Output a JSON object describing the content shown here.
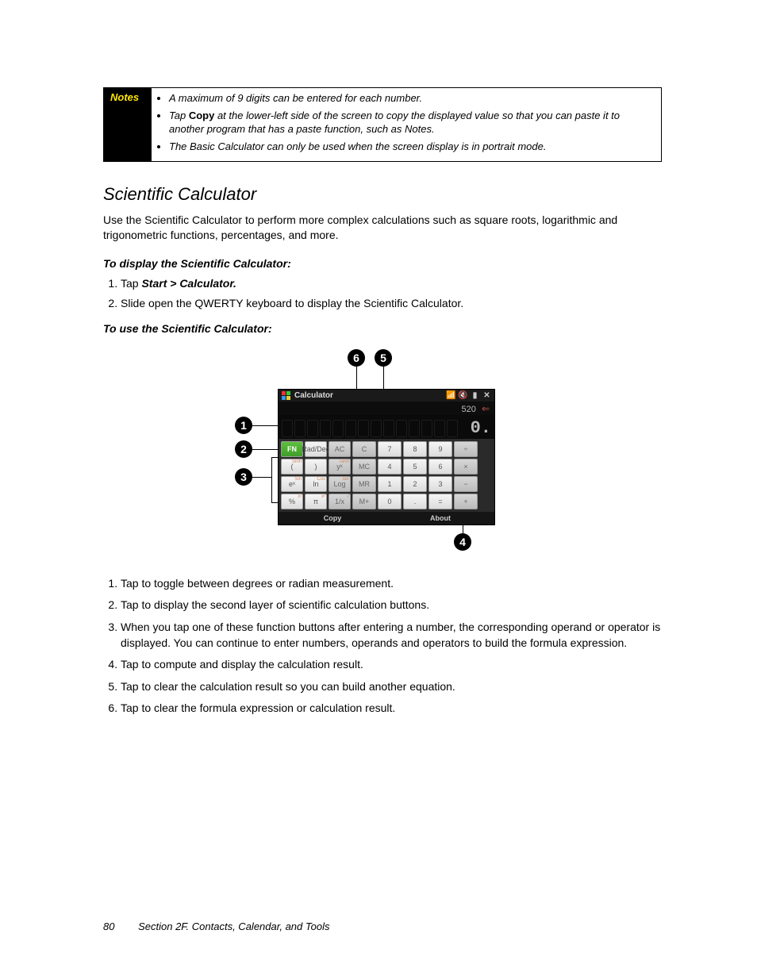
{
  "notes": {
    "label": "Notes",
    "items": [
      {
        "text": "A maximum of 9 digits can be entered for each number."
      },
      {
        "pre": "Tap ",
        "bold": "Copy",
        "post": " at the lower-left side of the screen to copy the displayed value so that you can paste it to another program that has a paste function, such as Notes."
      },
      {
        "text": "The Basic Calculator can only be used when the screen display is in portrait mode."
      }
    ]
  },
  "section_title": "Scientific Calculator",
  "intro": "Use the Scientific Calculator to perform more complex calculations such as square roots, logarithmic and trigonometric functions, percentages, and more.",
  "display_head": "To display the Scientific Calculator:",
  "display_steps": [
    {
      "pre": "Tap ",
      "bi": "Start > Calculator."
    },
    {
      "text": "Slide open the QWERTY keyboard to display the Scientific Calculator."
    }
  ],
  "use_head": "To use the Scientific Calculator:",
  "calc": {
    "title": "Calculator",
    "value": "520",
    "lcd_zero": "0.",
    "bottom_left": "Copy",
    "bottom_right": "About",
    "rows": [
      [
        "FN",
        "Rad/Deg",
        "AC",
        "C",
        "7",
        "8",
        "9",
        "÷"
      ],
      [
        "(",
        "  )",
        "yˣ",
        "MC",
        "4",
        "5",
        "6",
        "×"
      ],
      [
        "eˣ",
        "ln",
        "Log",
        "MR",
        "1",
        "2",
        "3",
        "−"
      ],
      [
        "%",
        "π",
        "1/x",
        "M+",
        "0",
        ".",
        "=",
        "+"
      ]
    ],
    "sup_map": {
      "(": "Sinh",
      ")": "Cosh",
      "yˣ": "Tanh",
      "eˣ": "Sin",
      "ln": "Cos",
      "Log": "Tan",
      "%": "x!",
      "π": "x²",
      "1/x": "√"
    },
    "row1_extra": [
      "Sin",
      "Cos"
    ]
  },
  "callouts": {
    "1": "1",
    "2": "2",
    "3": "3",
    "4": "4",
    "5": "5",
    "6": "6"
  },
  "desc": [
    "Tap to toggle between degrees or radian measurement.",
    "Tap to display the second layer of scientific calculation buttons.",
    "When you tap one of these function buttons after entering a number, the corresponding operand or operator is displayed. You can continue to enter numbers, operands and operators to build the formula expression.",
    "Tap to compute and display the calculation result.",
    "Tap to clear the calculation result so you can build another equation.",
    "Tap to clear the formula expression or calculation result."
  ],
  "footer": {
    "page": "80",
    "section": "Section 2F. Contacts, Calendar, and Tools"
  },
  "colors": {
    "notes_label_bg": "#000000",
    "notes_label_fg": "#ffe600",
    "fn_green_top": "#5fbf3f",
    "fn_green_bottom": "#3e9e28"
  }
}
